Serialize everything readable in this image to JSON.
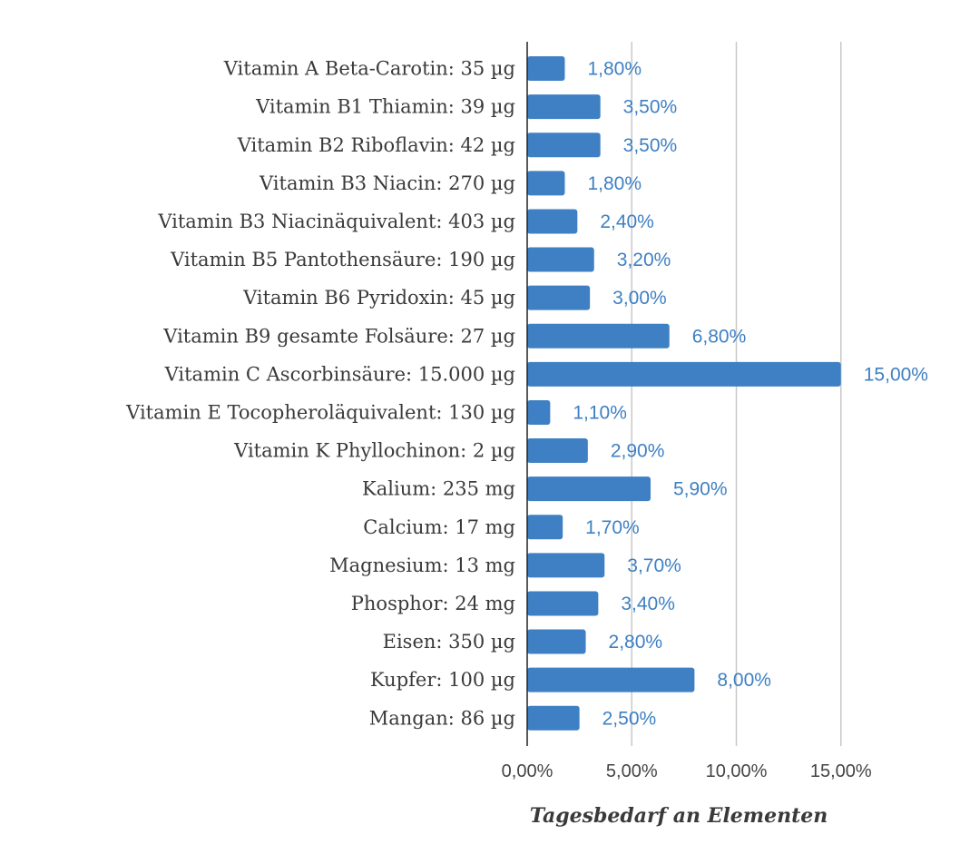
{
  "chart_data": {
    "type": "bar",
    "orientation": "horizontal",
    "categories": [
      "Vitamin A Beta-Carotin: 35 µg",
      "Vitamin B1 Thiamin: 39 µg",
      "Vitamin B2 Riboflavin: 42 µg",
      "Vitamin B3 Niacin: 270 µg",
      "Vitamin B3 Niacinäquivalent: 403 µg",
      "Vitamin B5 Pantothensäure: 190 µg",
      "Vitamin B6 Pyridoxin: 45 µg",
      "Vitamin B9 gesamte Folsäure: 27 µg",
      "Vitamin C Ascorbinsäure: 15.000 µg",
      "Vitamin E Tocopheroläquivalent: 130 µg",
      "Vitamin K Phyllochinon: 2 µg",
      "Kalium: 235 mg",
      "Calcium: 17 mg",
      "Magnesium: 13 mg",
      "Phosphor: 24 mg",
      "Eisen: 350 µg",
      "Kupfer: 100 µg",
      "Mangan: 86 µg"
    ],
    "values": [
      1.8,
      3.5,
      3.5,
      1.8,
      2.4,
      3.2,
      3.0,
      6.8,
      15.0,
      1.1,
      2.9,
      5.9,
      1.7,
      3.7,
      3.4,
      2.8,
      8.0,
      2.5
    ],
    "value_labels": [
      "1,80%",
      "3,50%",
      "3,50%",
      "1,80%",
      "2,40%",
      "3,20%",
      "3,00%",
      "6,80%",
      "15,00%",
      "1,10%",
      "2,90%",
      "5,90%",
      "1,70%",
      "3,70%",
      "3,40%",
      "2,80%",
      "8,00%",
      "2,50%"
    ],
    "xlabel": "Tagesbedarf an Elementen",
    "ylabel": "",
    "xlim": [
      0,
      17.5
    ],
    "x_ticks": [
      0,
      5,
      10,
      15
    ],
    "x_tick_labels": [
      "0,00%",
      "5,00%",
      "10,00%",
      "15,00%"
    ],
    "grid": true,
    "legend": "none",
    "colors": {
      "bar": "#3e80c3",
      "value_label": "#3e80c3",
      "grid": "#c8c8c8",
      "text": "#3a3a3a"
    }
  }
}
